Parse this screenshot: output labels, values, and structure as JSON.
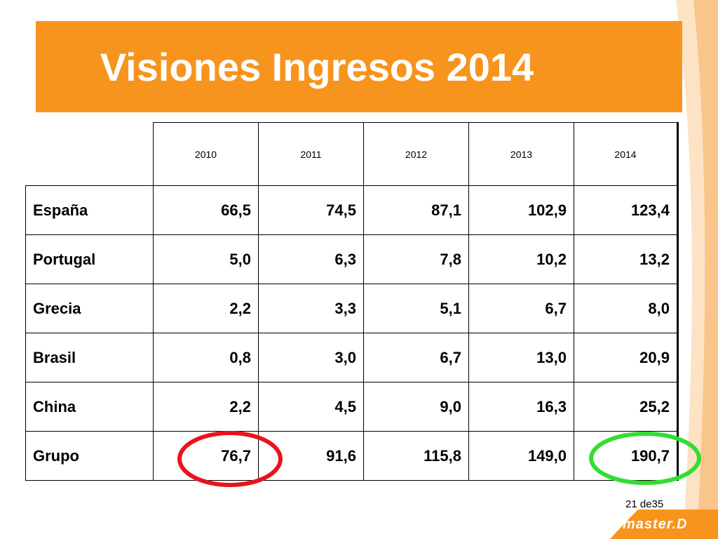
{
  "slide": {
    "title": "Visiones Ingresos 2014",
    "page_label": "21 de35",
    "logo_text": "master.D"
  },
  "table": {
    "years": [
      "2010",
      "2011",
      "2012",
      "2013",
      "2014"
    ],
    "rows": [
      {
        "name": "España",
        "values": [
          "66,5",
          "74,5",
          "87,1",
          "102,9",
          "123,4"
        ]
      },
      {
        "name": "Portugal",
        "values": [
          "5,0",
          "6,3",
          "7,8",
          "10,2",
          "13,2"
        ]
      },
      {
        "name": "Grecia",
        "values": [
          "2,2",
          "3,3",
          "5,1",
          "6,7",
          "8,0"
        ]
      },
      {
        "name": "Brasil",
        "values": [
          "0,8",
          "3,0",
          "6,7",
          "13,0",
          "20,9"
        ]
      },
      {
        "name": "China",
        "values": [
          "2,2",
          "4,5",
          "9,0",
          "16,3",
          "25,2"
        ]
      },
      {
        "name": "Grupo",
        "values": [
          "76,7",
          "91,6",
          "115,8",
          "149,0",
          "190,7"
        ]
      }
    ]
  },
  "highlights": [
    {
      "target": "Grupo 2010 value",
      "color": "#e8141c"
    },
    {
      "target": "Grupo 2014 value",
      "color": "#33dd33"
    }
  ],
  "colors": {
    "banner": "#f7941d",
    "swoosh": "#f9c58a",
    "logo_background": "#f7941d"
  }
}
